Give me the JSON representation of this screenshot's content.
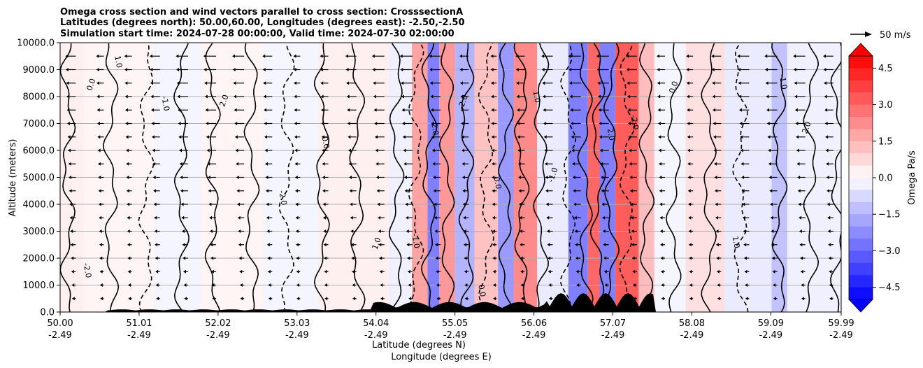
{
  "chart_data": {
    "type": "heatmap",
    "title_lines": [
      "Omega cross section and wind vectors parallel to cross section: CrosssectionA",
      "Latitudes (degrees north): 50.00,60.00, Longitudes (degrees east): -2.50,-2.50",
      "Simulation start time: 2024-07-28 00:00:00, Valid time: 2024-07-30 02:00:00"
    ],
    "ylabel": "Altitude (meters)",
    "xlabel_lat": "Latitude (degrees N)",
    "xlabel_lon": "Longitude (degrees E)",
    "y_ticks": [
      "0.0",
      "1000.0",
      "2000.0",
      "3000.0",
      "4000.0",
      "5000.0",
      "6000.0",
      "7000.0",
      "8000.0",
      "9000.0",
      "10000.0"
    ],
    "y_range": [
      0,
      10000
    ],
    "x_range": [
      50.0,
      59.99
    ],
    "x_ticks": [
      {
        "lat": "50.00",
        "lon": "-2.49",
        "value": 50.0
      },
      {
        "lat": "51.01",
        "lon": "-2.49",
        "value": 51.01
      },
      {
        "lat": "52.02",
        "lon": "-2.49",
        "value": 52.02
      },
      {
        "lat": "53.03",
        "lon": "-2.49",
        "value": 53.03
      },
      {
        "lat": "54.04",
        "lon": "-2.49",
        "value": 54.04
      },
      {
        "lat": "55.05",
        "lon": "-2.49",
        "value": 55.05
      },
      {
        "lat": "56.06",
        "lon": "-2.49",
        "value": 56.06
      },
      {
        "lat": "57.07",
        "lon": "-2.49",
        "value": 57.07
      },
      {
        "lat": "58.08",
        "lon": "-2.49",
        "value": 58.08
      },
      {
        "lat": "59.09",
        "lon": "-2.49",
        "value": 59.09
      },
      {
        "lat": "59.99",
        "lon": "-2.49",
        "value": 59.99
      }
    ],
    "colorbar": {
      "label": "Omega Pa/s",
      "ticks": [
        "4.5",
        "3.0",
        "1.5",
        "0.0",
        "−1.5",
        "−3.0",
        "−4.5"
      ],
      "range": [
        -5.0,
        5.0
      ],
      "levels": 20,
      "colors": {
        "positive": "#ff0000",
        "negative": "#0000ff",
        "neutral": "#ffffff"
      }
    },
    "quiver_key": {
      "label": "50 m/s"
    },
    "contour_labels": [
      "0.0",
      "1.0",
      "-1.0",
      "2.0",
      "-2.0"
    ],
    "omega_bands": [
      {
        "lat_from": 50.0,
        "lat_to": 50.3,
        "value": 0.3
      },
      {
        "lat_from": 50.3,
        "lat_to": 51.2,
        "value": 0.2
      },
      {
        "lat_from": 51.2,
        "lat_to": 51.8,
        "value": -0.2
      },
      {
        "lat_from": 51.8,
        "lat_to": 52.6,
        "value": 0.2
      },
      {
        "lat_from": 52.6,
        "lat_to": 53.3,
        "value": -0.2
      },
      {
        "lat_from": 53.3,
        "lat_to": 54.2,
        "value": 0.3
      },
      {
        "lat_from": 54.2,
        "lat_to": 54.5,
        "value": -0.3
      },
      {
        "lat_from": 54.5,
        "lat_to": 54.7,
        "value": 1.8
      },
      {
        "lat_from": 54.7,
        "lat_to": 54.85,
        "value": -2.5
      },
      {
        "lat_from": 54.85,
        "lat_to": 55.05,
        "value": 2.0
      },
      {
        "lat_from": 55.05,
        "lat_to": 55.3,
        "value": -1.5
      },
      {
        "lat_from": 55.3,
        "lat_to": 55.6,
        "value": 1.2
      },
      {
        "lat_from": 55.6,
        "lat_to": 55.8,
        "value": -2.0
      },
      {
        "lat_from": 55.8,
        "lat_to": 56.1,
        "value": 2.3
      },
      {
        "lat_from": 56.1,
        "lat_to": 56.5,
        "value": -0.4
      },
      {
        "lat_from": 56.5,
        "lat_to": 56.75,
        "value": -2.5
      },
      {
        "lat_from": 56.75,
        "lat_to": 56.9,
        "value": 3.0
      },
      {
        "lat_from": 56.9,
        "lat_to": 57.1,
        "value": -2.5
      },
      {
        "lat_from": 57.1,
        "lat_to": 57.4,
        "value": 3.2
      },
      {
        "lat_from": 57.4,
        "lat_to": 57.6,
        "value": 1.3
      },
      {
        "lat_from": 57.6,
        "lat_to": 58.0,
        "value": -0.2
      },
      {
        "lat_from": 58.0,
        "lat_to": 58.5,
        "value": 0.6
      },
      {
        "lat_from": 58.5,
        "lat_to": 59.1,
        "value": -0.4
      },
      {
        "lat_from": 59.1,
        "lat_to": 59.3,
        "value": -1.2
      },
      {
        "lat_from": 59.3,
        "lat_to": 59.99,
        "value": -0.3
      }
    ]
  }
}
